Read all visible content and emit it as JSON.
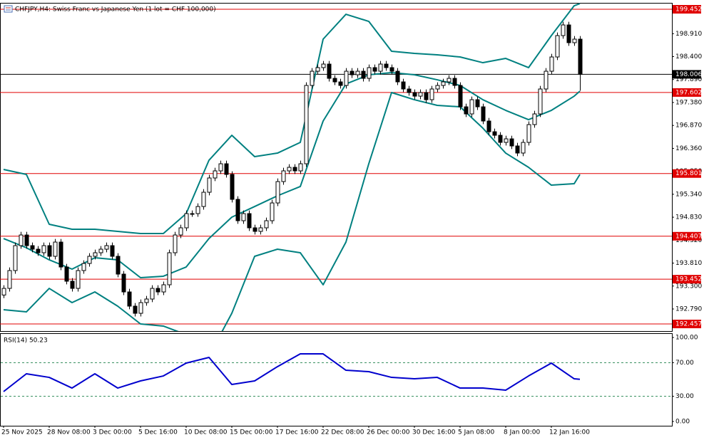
{
  "chart_data": {
    "type": "candlestick",
    "title": "CHFJPY,H4:  Swiss Franc vs Japanese Yen (1 lot = CHF 100,000)",
    "open": [
      193.1,
      193.248,
      193.644,
      194.198,
      194.435,
      194.198,
      194.119,
      194.04,
      194.198,
      193.961,
      194.277,
      193.723,
      193.407,
      193.248,
      193.644,
      193.802,
      193.961,
      194.04,
      194.119,
      194.198,
      193.961,
      193.565,
      193.169,
      192.853,
      192.694,
      192.932,
      193.011,
      193.248,
      193.169,
      193.328,
      194.04,
      194.435,
      194.594,
      194.91,
      194.91,
      195.068,
      195.385,
      195.702,
      195.86,
      196.018,
      195.781,
      195.227,
      194.752,
      194.91,
      194.594,
      194.515,
      194.594,
      194.752,
      195.147,
      195.622,
      195.86,
      195.939,
      195.86,
      196.018,
      197.759,
      198.075,
      198.155,
      198.234,
      197.917,
      197.838,
      197.759,
      198.075,
      197.996,
      198.075,
      197.917,
      198.155,
      198.075,
      198.234,
      198.155,
      198.075,
      197.838,
      197.68,
      197.601,
      197.521,
      197.601,
      197.442,
      197.68,
      197.759,
      197.838,
      197.917,
      197.759,
      197.284,
      197.126,
      197.442,
      197.284,
      196.968,
      196.73,
      196.651,
      196.493,
      196.572,
      196.414,
      196.256,
      196.493,
      196.889,
      197.126,
      197.68,
      198.075,
      198.392,
      198.867,
      199.104,
      198.709,
      198.788
    ],
    "high": [
      193.318,
      193.714,
      194.268,
      194.505,
      194.505,
      194.268,
      194.189,
      194.268,
      194.268,
      194.347,
      194.347,
      193.793,
      193.477,
      193.714,
      193.872,
      194.031,
      194.11,
      194.189,
      194.268,
      194.268,
      194.031,
      193.635,
      193.239,
      192.923,
      193.002,
      193.081,
      193.318,
      193.318,
      193.398,
      194.11,
      194.505,
      194.664,
      194.98,
      194.98,
      195.138,
      195.455,
      195.772,
      195.93,
      196.088,
      196.088,
      195.851,
      195.297,
      194.98,
      194.98,
      194.664,
      194.664,
      194.822,
      195.217,
      195.692,
      195.93,
      196.009,
      196.009,
      196.088,
      197.829,
      198.145,
      198.225,
      198.304,
      198.304,
      197.987,
      197.908,
      198.145,
      198.145,
      198.145,
      198.145,
      198.225,
      198.225,
      198.304,
      198.304,
      198.225,
      198.145,
      197.908,
      197.75,
      197.671,
      197.671,
      197.671,
      197.75,
      197.829,
      197.908,
      197.987,
      197.987,
      197.829,
      197.354,
      197.512,
      197.512,
      197.354,
      197.038,
      196.8,
      196.721,
      196.642,
      196.642,
      196.484,
      196.563,
      196.959,
      197.196,
      197.75,
      198.145,
      198.462,
      198.937,
      199.174,
      199.174,
      198.858,
      198.858
    ],
    "low": [
      193.03,
      193.178,
      193.574,
      194.128,
      194.128,
      194.049,
      193.97,
      193.97,
      193.891,
      193.891,
      193.653,
      193.337,
      193.178,
      193.178,
      193.574,
      193.732,
      193.891,
      193.97,
      194.049,
      193.891,
      193.495,
      193.099,
      192.783,
      192.624,
      192.624,
      192.862,
      192.941,
      193.099,
      193.099,
      193.258,
      193.97,
      194.365,
      194.524,
      194.84,
      194.84,
      194.998,
      195.315,
      195.632,
      195.79,
      195.711,
      195.157,
      194.682,
      194.682,
      194.524,
      194.445,
      194.445,
      194.524,
      194.682,
      195.077,
      195.552,
      195.79,
      195.79,
      195.79,
      195.948,
      197.689,
      198.005,
      198.085,
      197.847,
      197.768,
      197.689,
      197.689,
      197.926,
      197.926,
      197.847,
      197.847,
      198.005,
      198.005,
      198.085,
      198.005,
      197.768,
      197.61,
      197.531,
      197.451,
      197.451,
      197.372,
      197.372,
      197.61,
      197.689,
      197.768,
      197.689,
      197.214,
      197.056,
      197.056,
      197.214,
      196.898,
      196.66,
      196.581,
      196.423,
      196.423,
      196.344,
      196.186,
      196.186,
      196.423,
      196.819,
      197.056,
      197.61,
      198.005,
      198.322,
      198.797,
      198.639,
      198.639,
      197.64
    ],
    "close": [
      193.248,
      193.644,
      194.198,
      194.435,
      194.198,
      194.119,
      194.04,
      194.198,
      193.961,
      194.277,
      193.723,
      193.407,
      193.248,
      193.644,
      193.802,
      193.961,
      194.04,
      194.119,
      194.198,
      193.961,
      193.565,
      193.169,
      192.853,
      192.694,
      192.932,
      193.011,
      193.248,
      193.169,
      193.328,
      194.04,
      194.435,
      194.594,
      194.91,
      194.91,
      195.068,
      195.385,
      195.702,
      195.86,
      196.018,
      195.781,
      195.227,
      194.752,
      194.91,
      194.594,
      194.515,
      194.594,
      194.752,
      195.147,
      195.622,
      195.86,
      195.939,
      195.86,
      196.018,
      197.759,
      198.075,
      198.155,
      198.234,
      197.917,
      197.838,
      197.759,
      198.075,
      197.996,
      198.075,
      197.917,
      198.155,
      198.075,
      198.234,
      198.155,
      198.075,
      197.838,
      197.68,
      197.601,
      197.521,
      197.601,
      197.442,
      197.68,
      197.759,
      197.838,
      197.917,
      197.759,
      197.284,
      197.126,
      197.442,
      197.284,
      196.968,
      196.73,
      196.651,
      196.493,
      196.572,
      196.414,
      196.256,
      196.493,
      196.889,
      197.126,
      197.68,
      198.075,
      198.392,
      198.867,
      199.104,
      198.709,
      198.788,
      198.006
    ],
    "xticks": [
      {
        "value": 0,
        "label": "25 Nov 2025"
      },
      {
        "value": 8,
        "label": "28 Nov 08:00"
      },
      {
        "value": 16,
        "label": "3 Dec 00:00"
      },
      {
        "value": 24,
        "label": "5 Dec 16:00"
      },
      {
        "value": 32,
        "label": "10 Dec 08:00"
      },
      {
        "value": 40,
        "label": "15 Dec 00:00"
      },
      {
        "value": 48,
        "label": "17 Dec 16:00"
      },
      {
        "value": 56,
        "label": "22 Dec 08:00"
      },
      {
        "value": 64,
        "label": "26 Dec 00:00"
      },
      {
        "value": 72,
        "label": "30 Dec 16:00"
      },
      {
        "value": 80,
        "label": "5 Jan 08:00"
      },
      {
        "value": 88,
        "label": "8 Jan 00:00"
      },
      {
        "value": 96,
        "label": "12 Jan 16:00"
      }
    ],
    "ylim": [
      192.299,
      199.595
    ],
    "yticks": [
      {
        "value": 198.91,
        "label": "198.910"
      },
      {
        "value": 198.4,
        "label": "198.400"
      },
      {
        "value": 197.89,
        "label": "197.890"
      },
      {
        "value": 197.38,
        "label": "197.380"
      },
      {
        "value": 196.87,
        "label": "196.870"
      },
      {
        "value": 196.36,
        "label": "196.360"
      },
      {
        "value": 195.85,
        "label": "195.850"
      },
      {
        "value": 195.34,
        "label": "195.340"
      },
      {
        "value": 194.83,
        "label": "194.830"
      },
      {
        "value": 194.32,
        "label": "194.320"
      },
      {
        "value": 193.81,
        "label": "193.810"
      },
      {
        "value": 193.3,
        "label": "193.300"
      },
      {
        "value": 192.79,
        "label": "192.790"
      }
    ],
    "levels": [
      {
        "value": 199.452,
        "color": "#e00000"
      },
      {
        "value": 197.602,
        "color": "#e00000"
      },
      {
        "value": 195.801,
        "color": "#e00000"
      },
      {
        "value": 194.407,
        "color": "#e00000"
      },
      {
        "value": 193.452,
        "color": "#e00000"
      },
      {
        "value": 192.457,
        "color": "#e00000"
      },
      {
        "value": 198.006,
        "color": "#000000"
      }
    ],
    "bollinger": {
      "color": "#008080",
      "x": [
        0,
        4,
        8,
        12,
        16,
        20,
        24,
        28,
        32,
        36,
        40,
        44,
        48,
        52,
        56,
        60,
        64,
        68,
        72,
        76,
        80,
        84,
        88,
        92,
        96,
        100,
        101
      ],
      "upper": [
        195.891,
        195.781,
        194.673,
        194.562,
        194.562,
        194.515,
        194.467,
        194.467,
        194.91,
        196.097,
        196.651,
        196.176,
        196.255,
        196.493,
        198.788,
        199.341,
        199.183,
        198.519,
        198.471,
        198.439,
        198.392,
        198.265,
        198.36,
        198.155,
        198.867,
        199.531,
        199.579
      ],
      "middle": [
        194.356,
        194.151,
        193.882,
        193.676,
        193.929,
        193.882,
        193.486,
        193.518,
        193.723,
        194.356,
        194.831,
        195.068,
        195.306,
        195.512,
        196.968,
        197.791,
        197.996,
        198.044,
        197.996,
        197.885,
        197.759,
        197.442,
        197.205,
        196.999,
        197.205,
        197.521,
        197.632
      ],
      "lower": [
        192.774,
        192.726,
        193.248,
        192.932,
        193.169,
        192.853,
        192.457,
        192.41,
        192.22,
        191.745,
        192.695,
        193.961,
        194.119,
        194.04,
        193.328,
        194.277,
        196.018,
        197.601,
        197.442,
        197.316,
        197.284,
        196.809,
        196.255,
        195.939,
        195.543,
        195.575,
        195.781
      ]
    },
    "rsi": {
      "title": "RSI(14) 50.23",
      "color": "#0000cd",
      "x": [
        0,
        4,
        8,
        12,
        16,
        20,
        24,
        28,
        32,
        36,
        40,
        44,
        48,
        52,
        56,
        60,
        64,
        68,
        72,
        76,
        80,
        84,
        88,
        92,
        96,
        100,
        101
      ],
      "values": [
        35.6,
        56.8,
        52.5,
        39.8,
        56.8,
        39.8,
        48.3,
        54.2,
        69.5,
        76.3,
        44.1,
        48.3,
        65.3,
        80.5,
        80.5,
        61.0,
        59.3,
        52.5,
        50.8,
        52.5,
        39.8,
        39.8,
        37.3,
        54.2,
        69.5,
        50.8,
        50.23
      ],
      "ylim": [
        -5.1,
        105.1
      ],
      "yticks": [
        {
          "value": 100,
          "label": "100.00"
        },
        {
          "value": 70,
          "label": "70.00"
        },
        {
          "value": 30,
          "label": "30.00"
        },
        {
          "value": 0,
          "label": "0.00"
        }
      ],
      "levels": [
        70,
        30
      ]
    }
  }
}
